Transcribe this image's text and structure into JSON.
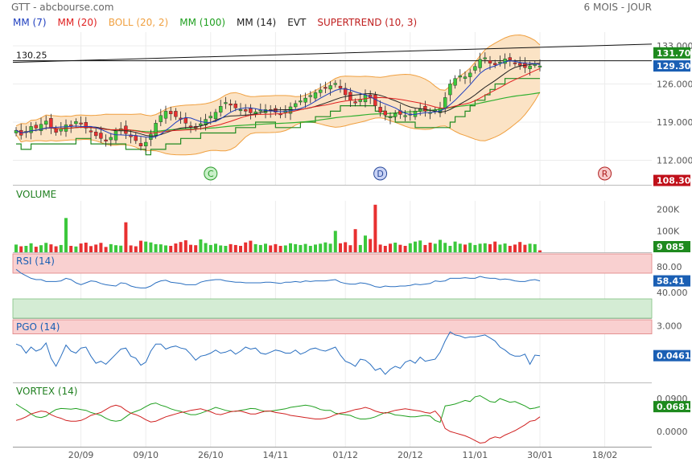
{
  "header": {
    "left": "GTT - abcbourse.com",
    "right": "6 MOIS - JOUR"
  },
  "legend": [
    {
      "label": "MM (7)",
      "color": "#1f3fbf"
    },
    {
      "label": "MM (20)",
      "color": "#e02020"
    },
    {
      "label": "BOLL (20, 2)",
      "color": "#f0a040"
    },
    {
      "label": "MM (100)",
      "color": "#20a020"
    },
    {
      "label": "MM (14)",
      "color": "#222222"
    },
    {
      "label": "EVT",
      "color": "#222222"
    },
    {
      "label": "SUPERTREND (10, 3)",
      "color": "#c02020"
    }
  ],
  "colors": {
    "up": "#3cc83c",
    "down": "#e83030",
    "boll_fill": "#fbe3c5",
    "boll_line": "#f0a040",
    "badge_green": "#1e8a1e",
    "badge_blue": "#1a5fb4",
    "badge_red": "#c0101a",
    "rsi_line": "#2a6fc0",
    "zone_red": "#f9d0d0",
    "zone_green": "#d4ecd4",
    "vortex_pos": "#20a020",
    "vortex_neg": "#d02020"
  },
  "chart_data": [
    {
      "type": "candlestick",
      "panel": "price",
      "yticks": [
        112.0,
        119.0,
        126.0,
        133.0
      ],
      "ylim": [
        107.5,
        135.5
      ],
      "price_labels": [
        {
          "value": 131.7,
          "text": "131.70",
          "style": "green"
        },
        {
          "value": 129.3,
          "text": "129.30",
          "style": "blue"
        },
        {
          "value": 108.3,
          "text": "108.30",
          "style": "red"
        }
      ],
      "horizontal_line": {
        "value": 130.25,
        "text": "130.25"
      },
      "markers": [
        {
          "letter": "C",
          "date": "26/10",
          "color": "#2a9a2a",
          "bg": "#c9f0c9"
        },
        {
          "letter": "D",
          "date": "08/12",
          "color": "#2a4a9a",
          "bg": "#c9d3f5"
        },
        {
          "letter": "R",
          "date": "18/02",
          "color": "#b02020",
          "bg": "#f7c9c9"
        }
      ],
      "closes": [
        117.5,
        116.6,
        117.3,
        118.2,
        117.9,
        118.6,
        119.2,
        118.0,
        117.1,
        117.8,
        118.5,
        118.2,
        119.1,
        118.7,
        117.9,
        117.2,
        116.5,
        116.0,
        115.5,
        116.2,
        117.4,
        117.8,
        116.9,
        116.3,
        115.6,
        114.6,
        115.3,
        116.8,
        118.8,
        120.2,
        121.0,
        120.5,
        120.0,
        119.5,
        118.8,
        118.2,
        117.9,
        118.7,
        119.5,
        120.1,
        120.8,
        121.9,
        122.6,
        122.1,
        121.6,
        121.3,
        121.0,
        120.7,
        120.9,
        121.2,
        121.3,
        121.0,
        120.8,
        120.5,
        121.1,
        121.8,
        122.4,
        122.9,
        123.4,
        123.9,
        124.4,
        124.9,
        125.3,
        125.7,
        126.1,
        125.2,
        124.0,
        123.0,
        122.5,
        123.2,
        124.0,
        123.5,
        122.0,
        120.8,
        120.3,
        120.0,
        120.6,
        120.4,
        120.2,
        120.5,
        121.0,
        121.4,
        121.0,
        120.8,
        121.2,
        121.5,
        123.5,
        126.0,
        127.0,
        127.5,
        127.3,
        128.0,
        129.2,
        130.5,
        130.8,
        129.8,
        129.5,
        130.0,
        130.6,
        130.4,
        129.8,
        129.4,
        129.0,
        129.3,
        129.6,
        129.3
      ],
      "volumes": [
        36,
        28,
        30,
        42,
        26,
        33,
        44,
        37,
        28,
        34,
        160,
        30,
        27,
        41,
        45,
        29,
        36,
        44,
        25,
        38,
        33,
        31,
        140,
        32,
        28,
        54,
        50,
        46,
        38,
        37,
        32,
        30,
        41,
        48,
        56,
        35,
        33,
        60,
        43,
        34,
        40,
        32,
        30,
        38,
        34,
        30,
        46,
        54,
        38,
        34,
        40,
        32,
        38,
        30,
        32,
        42,
        38,
        34,
        39,
        30,
        36,
        40,
        46,
        40,
        100,
        42,
        47,
        33,
        108,
        34,
        78,
        62,
        222,
        36,
        30,
        40,
        45,
        35,
        30,
        42,
        50,
        55,
        34,
        45,
        40,
        58,
        44,
        30,
        50,
        40,
        36,
        44,
        34,
        40,
        42,
        38,
        50,
        36,
        41,
        30,
        36,
        48,
        35,
        40,
        38,
        9
      ],
      "volume_yticks": [
        {
          "value": 100,
          "text": "100K"
        },
        {
          "value": 200,
          "text": "200K"
        }
      ],
      "volume_label": "VOLUME",
      "volume_last": "9 085",
      "xticks": [
        "20/09",
        "09/10",
        "26/10",
        "14/11",
        "01/12",
        "20/12",
        "11/01",
        "30/01",
        "18/02"
      ]
    },
    {
      "type": "line",
      "panel": "RSI",
      "title": "RSI (14)",
      "yticks": [
        {
          "value": 80,
          "text": "80.00"
        },
        {
          "value": 40,
          "text": "40.000"
        }
      ],
      "ylim": [
        0,
        100
      ],
      "zones": [
        {
          "from": 70,
          "to": 100,
          "kind": "red"
        },
        {
          "from": 0,
          "to": 30,
          "kind": "green"
        }
      ],
      "last": "58.41",
      "values": [
        76,
        70,
        66,
        62,
        60,
        60,
        57,
        57,
        57,
        58,
        62,
        60,
        55,
        52,
        55,
        58,
        57,
        54,
        52,
        51,
        50,
        55,
        54,
        50,
        48,
        47,
        47,
        50,
        55,
        58,
        59,
        56,
        55,
        54,
        52,
        52,
        52,
        56,
        58,
        59,
        60,
        60,
        58,
        57,
        56,
        56,
        55,
        55,
        55,
        55,
        56,
        56,
        55,
        54,
        56,
        56,
        57,
        56,
        58,
        57,
        58,
        58,
        58,
        59,
        60,
        56,
        54,
        53,
        53,
        55,
        54,
        52,
        49,
        48,
        50,
        49,
        49,
        50,
        50,
        51,
        53,
        52,
        53,
        54,
        58,
        57,
        58,
        62,
        62,
        62,
        63,
        62,
        62,
        65,
        63,
        62,
        62,
        60,
        61,
        60,
        58,
        57,
        57,
        59,
        60,
        58
      ]
    },
    {
      "type": "line",
      "panel": "PGO",
      "title": "PGO (14)",
      "yticks": [
        {
          "value": 3.0,
          "text": "3.000"
        }
      ],
      "ylim": [
        -2.6,
        3.6
      ],
      "zones": [
        {
          "from": 2.2,
          "to": 3.6,
          "kind": "red"
        }
      ],
      "last": "0.0461",
      "values": [
        1.2,
        1.0,
        0.3,
        0.9,
        0.5,
        0.7,
        1.3,
        -0.2,
        -1.0,
        0.0,
        1.1,
        0.5,
        0.3,
        0.8,
        0.9,
        0.0,
        -0.7,
        -0.5,
        -0.8,
        -0.3,
        0.2,
        0.7,
        0.8,
        0.0,
        -0.2,
        -0.9,
        -0.6,
        0.5,
        1.2,
        1.2,
        0.7,
        0.9,
        1.0,
        0.8,
        0.7,
        0.2,
        -0.4,
        0.0,
        0.1,
        0.3,
        0.6,
        0.3,
        0.4,
        0.6,
        0.2,
        0.5,
        0.9,
        0.7,
        0.8,
        0.3,
        0.2,
        0.4,
        0.6,
        0.5,
        0.3,
        0.3,
        0.6,
        0.2,
        0.4,
        0.7,
        0.8,
        0.6,
        0.5,
        0.7,
        0.9,
        0.1,
        -0.5,
        -0.7,
        -1.0,
        -0.3,
        -0.4,
        -0.8,
        -1.4,
        -1.2,
        -1.8,
        -1.3,
        -1.0,
        -1.2,
        -0.6,
        -0.4,
        -0.7,
        -0.1,
        -0.5,
        -0.4,
        -0.3,
        0.4,
        1.5,
        2.4,
        2.1,
        2.0,
        1.8,
        1.9,
        1.9,
        2.0,
        2.1,
        1.8,
        1.5,
        0.9,
        0.6,
        0.2,
        0.0,
        0.0,
        0.2,
        -0.8,
        0.1,
        0.05
      ]
    },
    {
      "type": "line",
      "panel": "VORTEX",
      "title": "VORTEX (14)",
      "yticks": [
        {
          "value": 0.09,
          "text": "0.0900"
        },
        {
          "value": 0.0,
          "text": "0.0000"
        }
      ],
      "ylim": [
        -0.042,
        0.13
      ],
      "last": "0.0681",
      "series": [
        {
          "name": "VI+",
          "color": "#20a020",
          "values": [
            0.075,
            0.066,
            0.058,
            0.048,
            0.04,
            0.038,
            0.042,
            0.052,
            0.06,
            0.063,
            0.062,
            0.061,
            0.063,
            0.06,
            0.058,
            0.052,
            0.048,
            0.044,
            0.036,
            0.03,
            0.028,
            0.03,
            0.04,
            0.05,
            0.055,
            0.06,
            0.068,
            0.075,
            0.078,
            0.072,
            0.068,
            0.062,
            0.058,
            0.055,
            0.05,
            0.046,
            0.046,
            0.05,
            0.055,
            0.06,
            0.066,
            0.062,
            0.058,
            0.055,
            0.055,
            0.058,
            0.06,
            0.063,
            0.062,
            0.058,
            0.055,
            0.056,
            0.058,
            0.06,
            0.062,
            0.066,
            0.068,
            0.07,
            0.072,
            0.07,
            0.066,
            0.06,
            0.058,
            0.058,
            0.05,
            0.048,
            0.046,
            0.044,
            0.038,
            0.034,
            0.034,
            0.036,
            0.04,
            0.046,
            0.052,
            0.05,
            0.045,
            0.044,
            0.042,
            0.04,
            0.04,
            0.042,
            0.044,
            0.042,
            0.03,
            0.025,
            0.07,
            0.072,
            0.075,
            0.08,
            0.085,
            0.082,
            0.095,
            0.098,
            0.09,
            0.082,
            0.08,
            0.09,
            0.085,
            0.08,
            0.082,
            0.076,
            0.07,
            0.062,
            0.064,
            0.068
          ]
        },
        {
          "name": "VI-",
          "color": "#d02020",
          "values": [
            0.03,
            0.034,
            0.04,
            0.048,
            0.052,
            0.056,
            0.054,
            0.046,
            0.04,
            0.036,
            0.03,
            0.028,
            0.028,
            0.03,
            0.036,
            0.044,
            0.048,
            0.052,
            0.06,
            0.068,
            0.072,
            0.068,
            0.058,
            0.05,
            0.046,
            0.04,
            0.032,
            0.026,
            0.028,
            0.034,
            0.04,
            0.044,
            0.048,
            0.052,
            0.054,
            0.058,
            0.06,
            0.062,
            0.058,
            0.054,
            0.048,
            0.046,
            0.05,
            0.054,
            0.056,
            0.056,
            0.052,
            0.048,
            0.048,
            0.052,
            0.056,
            0.056,
            0.052,
            0.05,
            0.048,
            0.044,
            0.042,
            0.04,
            0.038,
            0.036,
            0.034,
            0.034,
            0.036,
            0.04,
            0.046,
            0.05,
            0.052,
            0.056,
            0.06,
            0.062,
            0.066,
            0.062,
            0.056,
            0.052,
            0.05,
            0.054,
            0.058,
            0.06,
            0.062,
            0.06,
            0.058,
            0.056,
            0.052,
            0.05,
            0.056,
            0.04,
            0.008,
            0.0,
            -0.004,
            -0.008,
            -0.012,
            -0.018,
            -0.025,
            -0.032,
            -0.03,
            -0.02,
            -0.015,
            -0.018,
            -0.01,
            -0.004,
            0.002,
            0.01,
            0.018,
            0.028,
            0.03,
            0.04
          ]
        }
      ]
    }
  ]
}
